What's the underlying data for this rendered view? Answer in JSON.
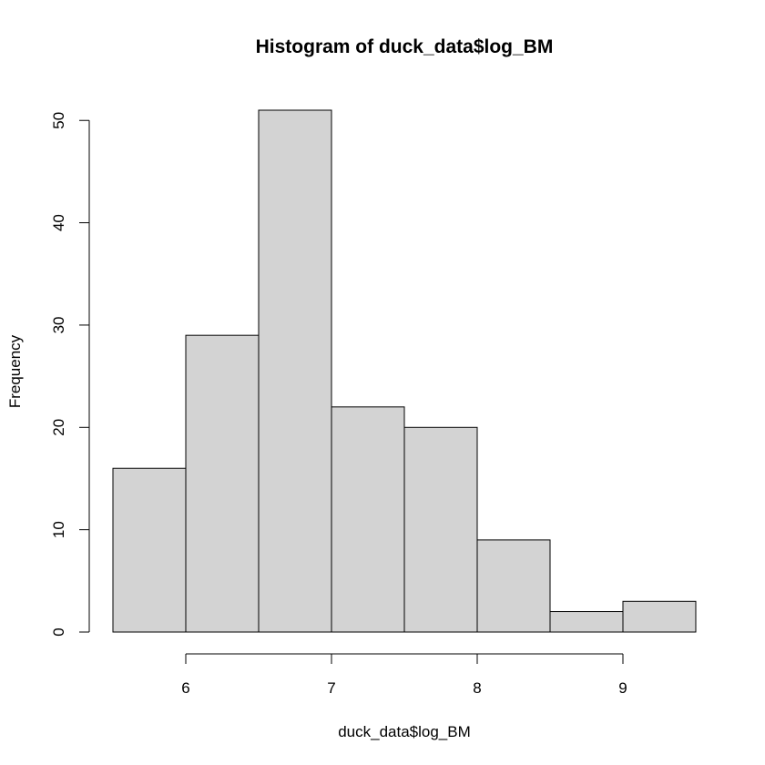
{
  "chart_data": {
    "type": "bar",
    "title": "Histogram of duck_data$log_BM",
    "xlabel": "duck_data$log_BM",
    "ylabel": "Frequency",
    "bins": [
      {
        "start": 5.5,
        "end": 6.0,
        "count": 16
      },
      {
        "start": 6.0,
        "end": 6.5,
        "count": 29
      },
      {
        "start": 6.5,
        "end": 7.0,
        "count": 51
      },
      {
        "start": 7.0,
        "end": 7.5,
        "count": 22
      },
      {
        "start": 7.5,
        "end": 8.0,
        "count": 20
      },
      {
        "start": 8.0,
        "end": 8.5,
        "count": 9
      },
      {
        "start": 8.5,
        "end": 9.0,
        "count": 2
      },
      {
        "start": 9.0,
        "end": 9.5,
        "count": 3
      }
    ],
    "xlim": [
      5.5,
      9.5
    ],
    "ylim": [
      0,
      51
    ],
    "x_ticks": [
      6,
      7,
      8,
      9
    ],
    "y_ticks": [
      0,
      10,
      20,
      30,
      40,
      50
    ],
    "grid": false,
    "bar_color": "#d3d3d3",
    "edge_color": "#000000"
  }
}
